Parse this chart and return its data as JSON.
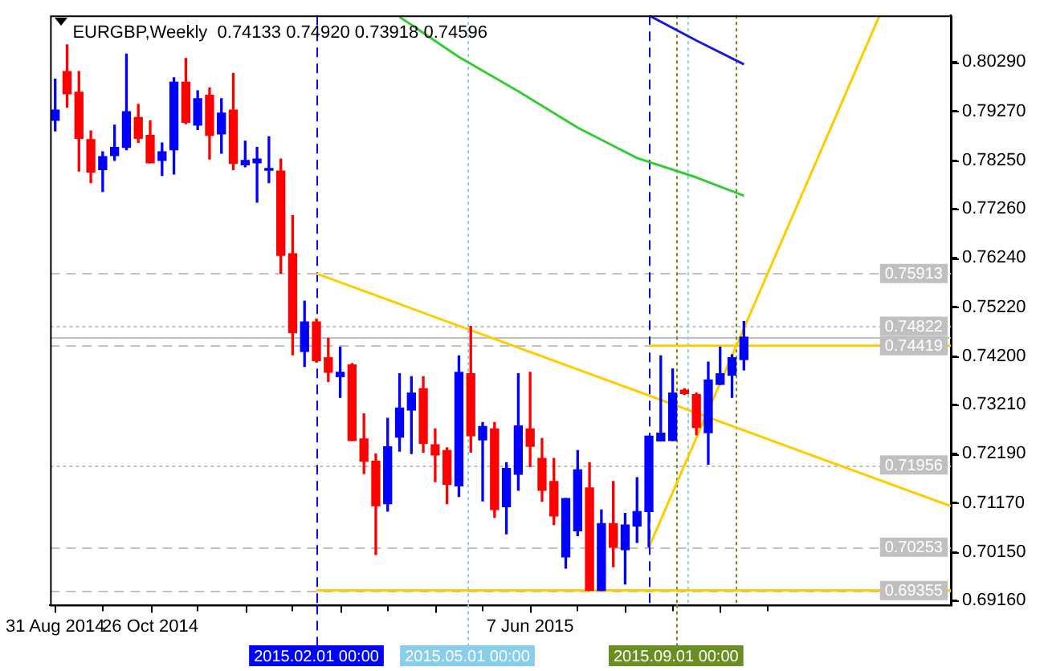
{
  "chart_data": {
    "type": "candlestick",
    "title": "EURGBP,Weekly  0.74133 0.74920 0.73918 0.74596",
    "x": [
      "2014-08-31",
      "2014-09-07",
      "2014-09-14",
      "2014-09-21",
      "2014-09-28",
      "2014-10-05",
      "2014-10-12",
      "2014-10-19",
      "2014-10-26",
      "2014-11-02",
      "2014-11-09",
      "2014-11-16",
      "2014-11-23",
      "2014-11-30",
      "2014-12-07",
      "2014-12-14",
      "2014-12-21",
      "2014-12-28",
      "2015-01-04",
      "2015-01-11",
      "2015-01-18",
      "2015-01-25",
      "2015-02-01",
      "2015-02-08",
      "2015-02-15",
      "2015-02-22",
      "2015-03-01",
      "2015-03-08",
      "2015-03-15",
      "2015-03-22",
      "2015-03-29",
      "2015-04-05",
      "2015-04-12",
      "2015-04-19",
      "2015-04-26",
      "2015-05-03",
      "2015-05-10",
      "2015-05-17",
      "2015-05-24",
      "2015-05-31",
      "2015-06-07",
      "2015-06-14",
      "2015-06-21",
      "2015-06-28",
      "2015-07-05",
      "2015-07-12",
      "2015-07-19",
      "2015-07-26",
      "2015-08-02",
      "2015-08-09",
      "2015-08-16",
      "2015-08-23",
      "2015-08-30",
      "2015-09-06",
      "2015-09-13",
      "2015-09-20",
      "2015-09-27",
      "2015-10-04",
      "2015-10-11"
    ],
    "ohlc": [
      [
        0.7908,
        0.7993,
        0.7886,
        0.7929
      ],
      [
        0.8009,
        0.8064,
        0.7935,
        0.7963
      ],
      [
        0.7966,
        0.8009,
        0.7803,
        0.7871
      ],
      [
        0.7868,
        0.7886,
        0.7779,
        0.7801
      ],
      [
        0.7806,
        0.7843,
        0.7761,
        0.7833
      ],
      [
        0.7835,
        0.7898,
        0.7825,
        0.7852
      ],
      [
        0.7852,
        0.8045,
        0.7847,
        0.7926
      ],
      [
        0.7914,
        0.7941,
        0.7862,
        0.7871
      ],
      [
        0.7877,
        0.7907,
        0.782,
        0.782
      ],
      [
        0.7825,
        0.7861,
        0.7794,
        0.7843
      ],
      [
        0.7847,
        0.7996,
        0.7797,
        0.7987
      ],
      [
        0.7987,
        0.8036,
        0.7901,
        0.7904
      ],
      [
        0.7898,
        0.7969,
        0.7889,
        0.7953
      ],
      [
        0.796,
        0.7975,
        0.7828,
        0.7877
      ],
      [
        0.788,
        0.7953,
        0.784,
        0.7923
      ],
      [
        0.7929,
        0.8005,
        0.7806,
        0.7819
      ],
      [
        0.7816,
        0.7865,
        0.7812,
        0.7825
      ],
      [
        0.782,
        0.7852,
        0.7739,
        0.7828
      ],
      [
        0.7805,
        0.7874,
        0.7779,
        0.7806
      ],
      [
        0.7803,
        0.7828,
        0.7592,
        0.7629
      ],
      [
        0.7632,
        0.7711,
        0.7423,
        0.7469
      ],
      [
        0.743,
        0.7534,
        0.7399,
        0.7491
      ],
      [
        0.7491,
        0.7497,
        0.7408,
        0.7411
      ],
      [
        0.7417,
        0.7457,
        0.7368,
        0.7387
      ],
      [
        0.7378,
        0.7439,
        0.7335,
        0.7387
      ],
      [
        0.7402,
        0.7405,
        0.7246,
        0.7246
      ],
      [
        0.7249,
        0.7301,
        0.7178,
        0.7203
      ],
      [
        0.7203,
        0.7218,
        0.701,
        0.7111
      ],
      [
        0.7115,
        0.7292,
        0.71,
        0.7233
      ],
      [
        0.7253,
        0.7384,
        0.7224,
        0.7313
      ],
      [
        0.7309,
        0.7378,
        0.7219,
        0.7344
      ],
      [
        0.7353,
        0.7378,
        0.7222,
        0.724
      ],
      [
        0.7237,
        0.727,
        0.7161,
        0.7216
      ],
      [
        0.7225,
        0.7231,
        0.7115,
        0.7155
      ],
      [
        0.7152,
        0.7421,
        0.713,
        0.7387
      ],
      [
        0.7384,
        0.7482,
        0.7222,
        0.7256
      ],
      [
        0.7247,
        0.7283,
        0.7121,
        0.7275
      ],
      [
        0.727,
        0.7283,
        0.7087,
        0.7103
      ],
      [
        0.7109,
        0.72,
        0.7053,
        0.7188
      ],
      [
        0.7176,
        0.7384,
        0.7143,
        0.7276
      ],
      [
        0.727,
        0.7387,
        0.7192,
        0.7234
      ],
      [
        0.7209,
        0.725,
        0.712,
        0.7143
      ],
      [
        0.7161,
        0.7209,
        0.7072,
        0.709
      ],
      [
        0.7005,
        0.7126,
        0.6982,
        0.7126
      ],
      [
        0.7059,
        0.7225,
        0.7049,
        0.7185
      ],
      [
        0.7148,
        0.72,
        0.6936,
        0.6936
      ],
      [
        0.6936,
        0.7102,
        0.6936,
        0.7074
      ],
      [
        0.7074,
        0.7161,
        0.6985,
        0.7025
      ],
      [
        0.702,
        0.7095,
        0.6949,
        0.7071
      ],
      [
        0.7069,
        0.7169,
        0.7035,
        0.7099
      ],
      [
        0.7099,
        0.7255,
        0.7026,
        0.7255
      ],
      [
        0.7245,
        0.7421,
        0.7245,
        0.7261
      ],
      [
        0.7246,
        0.7394,
        0.7246,
        0.7344
      ],
      [
        0.735,
        0.7353,
        0.7341,
        0.7343
      ],
      [
        0.7341,
        0.7344,
        0.7258,
        0.7273
      ],
      [
        0.7262,
        0.7408,
        0.7197,
        0.7371
      ],
      [
        0.7362,
        0.7439,
        0.7362,
        0.7384
      ],
      [
        0.7381,
        0.7423,
        0.7335,
        0.7417
      ],
      [
        0.74133,
        0.7492,
        0.73918,
        0.74596
      ]
    ],
    "colors": [
      "#0000ff",
      "#ff0000",
      "#ff0000",
      "#ff0000",
      "#0000ff",
      "#0000ff",
      "#0000ff",
      "#ff0000",
      "#ff0000",
      "#0000ff",
      "#0000ff",
      "#ff0000",
      "#0000ff",
      "#ff0000",
      "#0000ff",
      "#ff0000",
      "#0000ff",
      "#0000ff",
      "#0000ff",
      "#ff0000",
      "#ff0000",
      "#0000ff",
      "#ff0000",
      "#ff0000",
      "#0000ff",
      "#ff0000",
      "#ff0000",
      "#ff0000",
      "#0000ff",
      "#0000ff",
      "#0000ff",
      "#ff0000",
      "#ff0000",
      "#ff0000",
      "#0000ff",
      "#ff0000",
      "#0000ff",
      "#ff0000",
      "#0000ff",
      "#0000ff",
      "#ff0000",
      "#ff0000",
      "#ff0000",
      "#0000ff",
      "#0000ff",
      "#ff0000",
      "#0000ff",
      "#ff0000",
      "#0000ff",
      "#0000ff",
      "#0000ff",
      "#0000ff",
      "#0000ff",
      "#ff0000",
      "#ff0000",
      "#0000ff",
      "#0000ff",
      "#0000ff",
      "#0000ff"
    ],
    "series": [
      {
        "type": "line",
        "color": "#33cc33",
        "x": [
          "2015-03-22",
          "2015-04-26",
          "2015-05-31",
          "2015-07-05",
          "2015-08-09",
          "2015-09-13",
          "2015-10-11"
        ],
        "values": [
          0.8122,
          0.8039,
          0.7968,
          0.7893,
          0.783,
          0.779,
          0.7752
        ]
      },
      {
        "type": "line",
        "color": "#1a1adc",
        "x": [
          "2015-08-16",
          "2015-09-13",
          "2015-10-11"
        ],
        "values": [
          0.8125,
          0.8073,
          0.8024
        ]
      },
      {
        "type": "line",
        "color": "#ffcc00",
        "x": [
          "2015-02-01",
          "2016-02-10"
        ],
        "values": [
          0.7591,
          0.711
        ]
      },
      {
        "type": "line",
        "color": "#ffcc00",
        "x": [
          "2015-08-16",
          "2015-12-30"
        ],
        "values": [
          0.7025,
          0.8125
        ]
      },
      {
        "type": "line",
        "color": "#ffcc00",
        "x": [
          "2015-08-16",
          "2016-02-10"
        ],
        "values": [
          0.7442,
          0.7442
        ]
      },
      {
        "type": "line",
        "color": "#ffcc00",
        "x": [
          "2015-02-01",
          "2016-02-10"
        ],
        "values": [
          0.6936,
          0.6936
        ]
      }
    ],
    "ref_lines": [
      {
        "axis": "y",
        "value": 0.75913,
        "label": "0.75913",
        "color": "#c0c0c0",
        "line_style": "dashed"
      },
      {
        "axis": "y",
        "value": 0.74822,
        "label": "0.74822",
        "color": "#c0c0c0",
        "line_style": "dotted"
      },
      {
        "axis": "y",
        "value": 0.74596,
        "color": "#c0c0c0",
        "line_style": "solid"
      },
      {
        "axis": "y",
        "value": 0.74419,
        "label": "0.74419",
        "color": "#c0c0c0",
        "line_style": "dashed"
      },
      {
        "axis": "y",
        "value": 0.71956,
        "label": "0.71956",
        "color": "#c0c0c0",
        "line_style": "dotted"
      },
      {
        "axis": "y",
        "value": 0.70253,
        "label": "0.70253",
        "color": "#c0c0c0",
        "line_style": "dashed"
      },
      {
        "axis": "y",
        "value": 0.69355,
        "label": "0.69355",
        "color": "#c0c0c0",
        "line_style": "dashed"
      },
      {
        "axis": "x",
        "value": "2015-02-01",
        "label": "2015.02.01 00:00",
        "color": "#0000ff",
        "line_style": "dashed"
      },
      {
        "axis": "x",
        "value": "2015-05-01",
        "label": "2015.05.01 00:00",
        "color": "#87ceeb",
        "line_style": "dotted"
      },
      {
        "axis": "x",
        "value": "2015-08-16",
        "color": "#0000ff",
        "line_style": "dashed"
      },
      {
        "axis": "x",
        "value": "2015-09-01",
        "label": "2015.09.01 00:00",
        "color": "#6b8e23",
        "line_style": "dotted"
      },
      {
        "axis": "x",
        "value": "2015-09-08",
        "color": "#87ceeb",
        "line_style": "dotted"
      },
      {
        "axis": "x",
        "value": "2015-10-06",
        "color": "#6b8e23",
        "line_style": "dotted"
      }
    ],
    "xlim": [
      "2014-08-28",
      "2016-02-10"
    ],
    "xticks": [
      {
        "value": "2014-08-31",
        "label": "31 Aug 2014"
      },
      {
        "value": "2014-10-26",
        "label": "26 Oct 2014"
      },
      {
        "value": "2014-12-21",
        "label": null
      },
      {
        "value": "2015-02-15",
        "label": null
      },
      {
        "value": "2015-04-12",
        "label": null
      },
      {
        "value": "2015-06-07",
        "label": "7 Jun 2015"
      },
      {
        "value": "2015-08-02",
        "label": null
      },
      {
        "value": "2015-09-27",
        "label": null
      }
    ],
    "ylim": [
      0.6906,
      0.8125
    ],
    "yticks": [
      {
        "value": 0.6916,
        "label": "0.69160"
      },
      {
        "value": 0.7015,
        "label": "0.70150"
      },
      {
        "value": 0.7117,
        "label": "0.71170"
      },
      {
        "value": 0.7219,
        "label": "0.72190"
      },
      {
        "value": 0.7321,
        "label": "0.73210"
      },
      {
        "value": 0.742,
        "label": "0.74200"
      },
      {
        "value": 0.7522,
        "label": "0.75220"
      },
      {
        "value": 0.7624,
        "label": "0.76240"
      },
      {
        "value": 0.7726,
        "label": "0.77260"
      },
      {
        "value": 0.7825,
        "label": "0.78250"
      },
      {
        "value": 0.7927,
        "label": "0.79270"
      },
      {
        "value": 0.8029,
        "label": "0.80290"
      }
    ]
  }
}
